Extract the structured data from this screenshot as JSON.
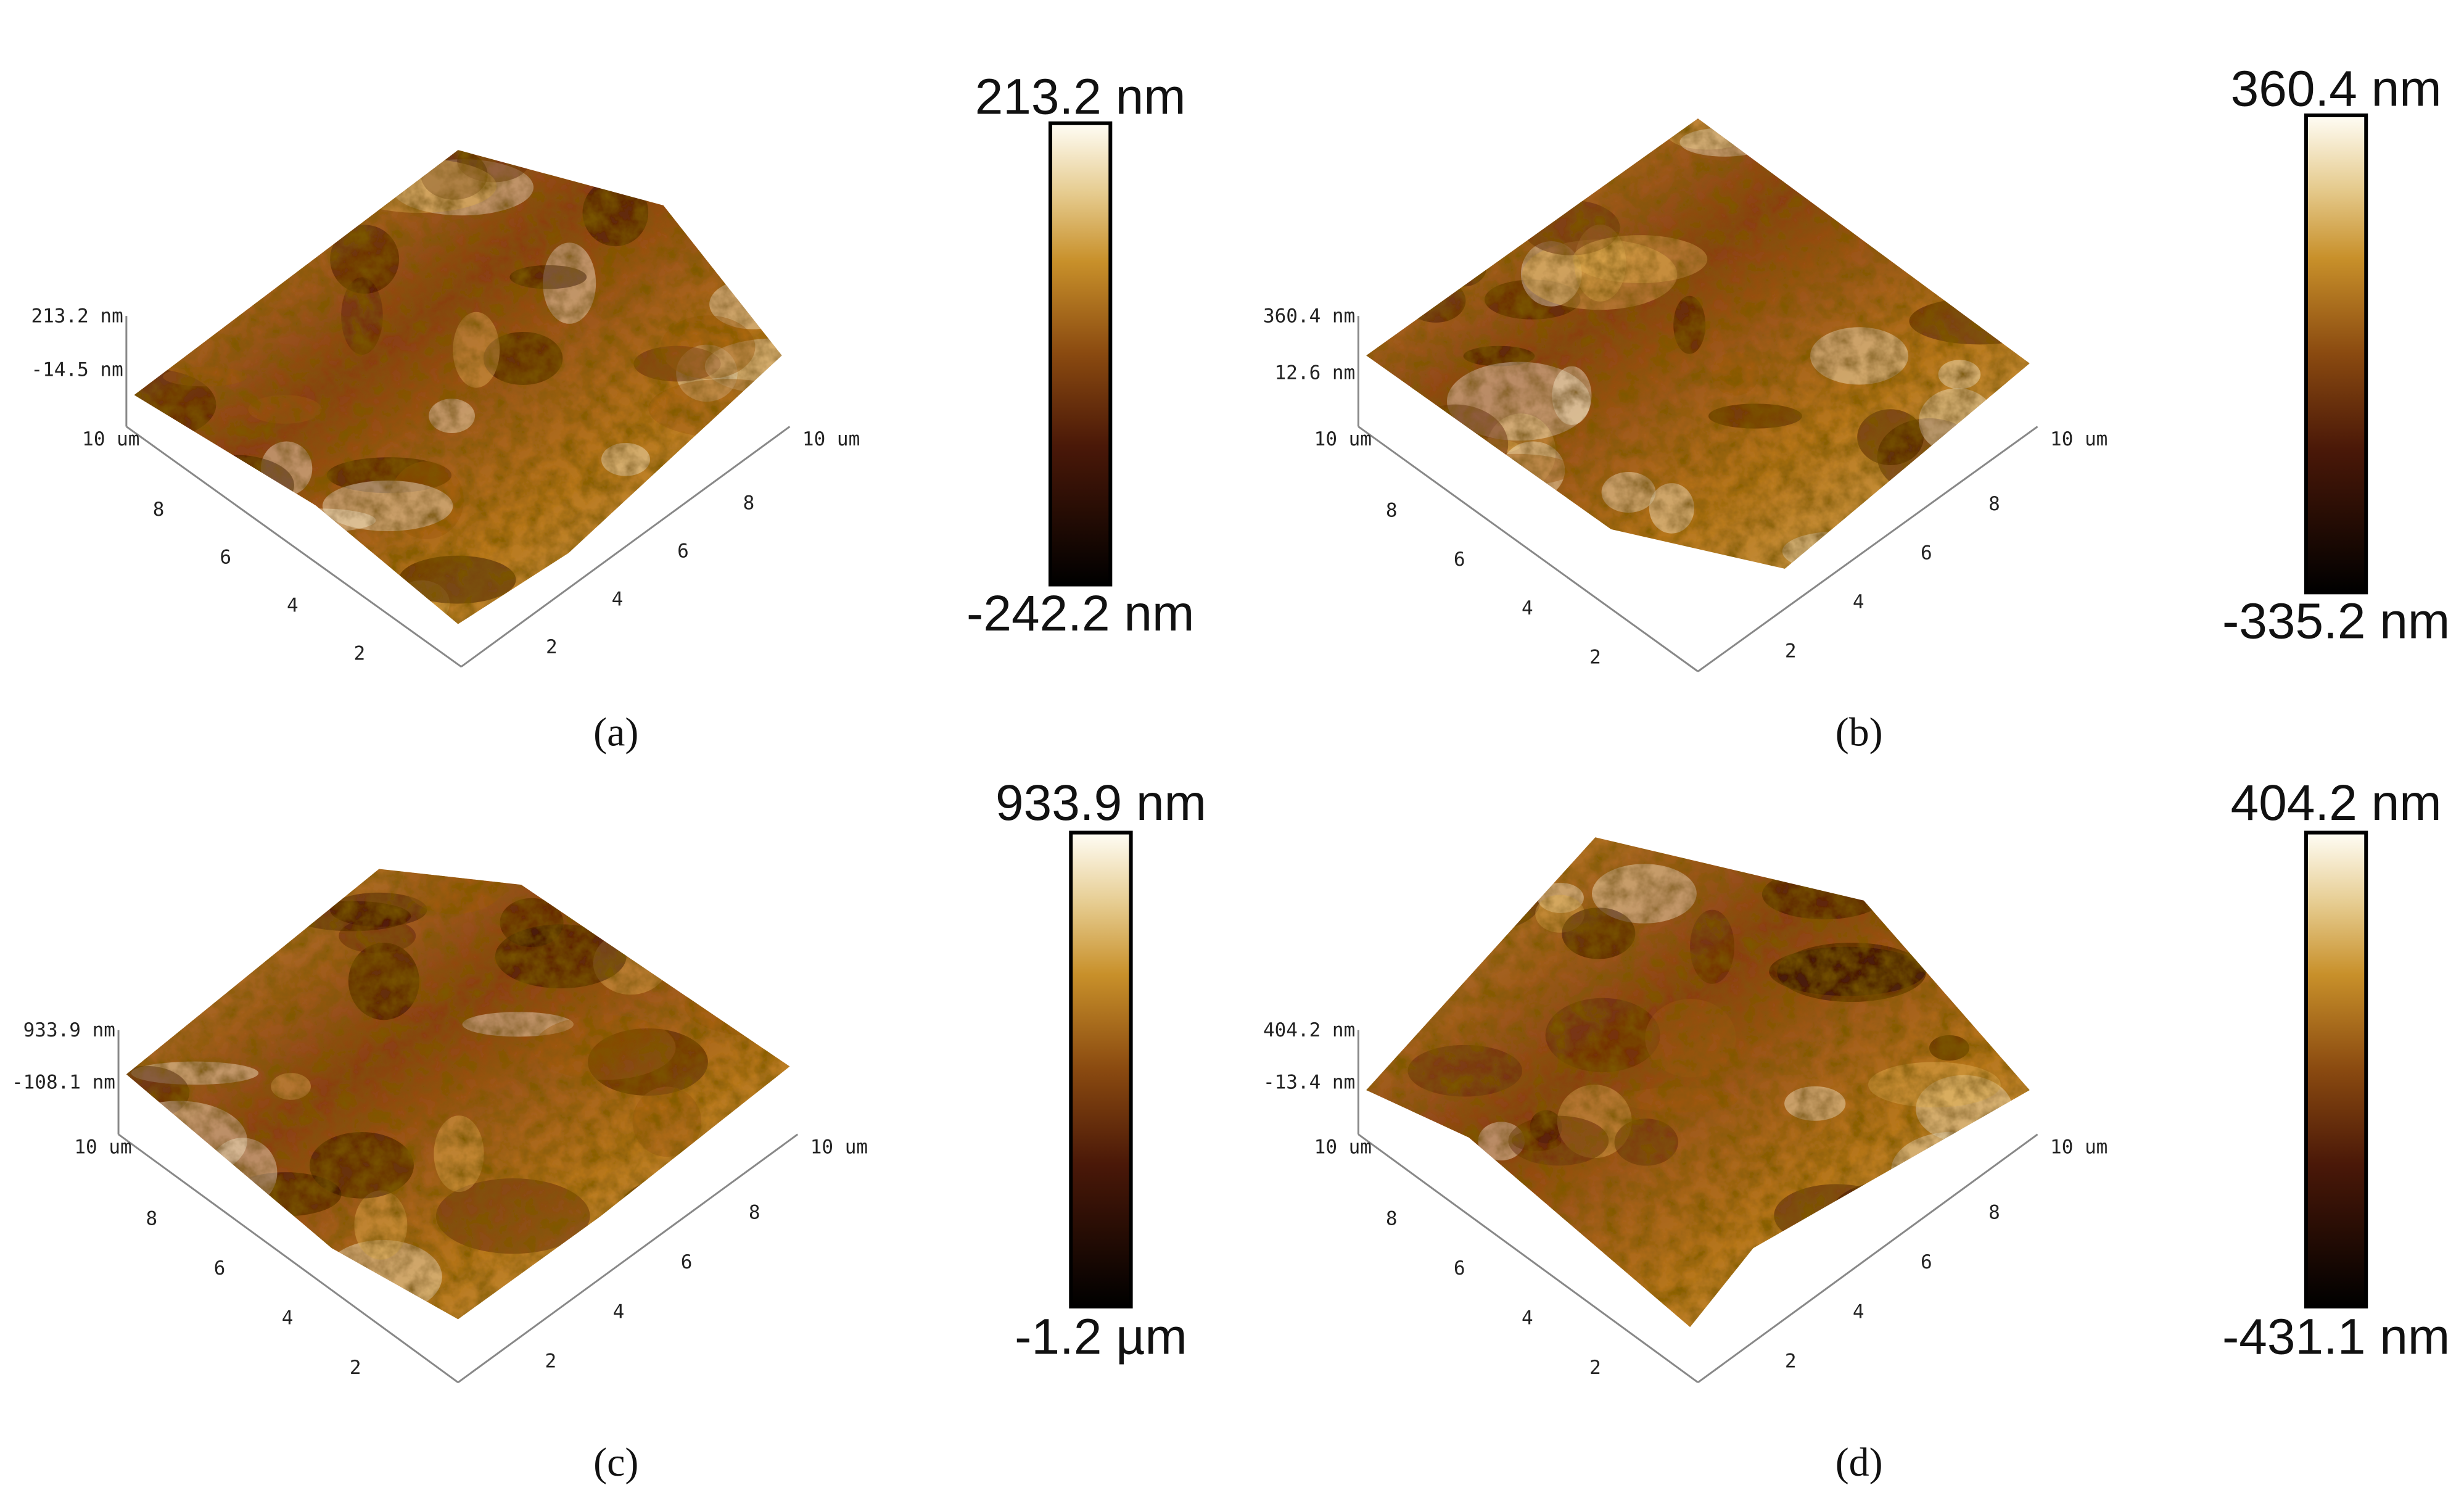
{
  "panels": [
    {
      "label": "(a)",
      "colorbar": {
        "max": "213.2 nm",
        "min": "-242.2 nm"
      },
      "z_axis": {
        "top": "213.2 nm",
        "mid": "-14.5 nm"
      },
      "x_ticks": [
        "2",
        "4",
        "6",
        "8",
        "10 um"
      ],
      "y_ticks": [
        "10 um",
        "8",
        "6",
        "4",
        "2"
      ]
    },
    {
      "label": "(b)",
      "colorbar": {
        "max": "360.4 nm",
        "min": "-335.2 nm"
      },
      "z_axis": {
        "top": "360.4 nm",
        "mid": "12.6 nm"
      },
      "x_ticks": [
        "2",
        "4",
        "6",
        "8",
        "10 um"
      ],
      "y_ticks": [
        "10 um",
        "8",
        "6",
        "4",
        "2"
      ]
    },
    {
      "label": "(c)",
      "colorbar": {
        "max": "933.9 nm",
        "min": "-1.2 µm"
      },
      "z_axis": {
        "top": "933.9 nm",
        "mid": "-108.1 nm"
      },
      "x_ticks": [
        "2",
        "4",
        "6",
        "8",
        "10 um"
      ],
      "y_ticks": [
        "10 um",
        "8",
        "6",
        "4",
        "2"
      ]
    },
    {
      "label": "(d)",
      "colorbar": {
        "max": "404.2 nm",
        "min": "-431.1 nm"
      },
      "z_axis": {
        "top": "404.2 nm",
        "mid": "-13.4 nm"
      },
      "x_ticks": [
        "2",
        "4",
        "6",
        "8",
        "10 um"
      ],
      "y_ticks": [
        "10 um",
        "8",
        "6",
        "4",
        "2"
      ]
    }
  ]
}
